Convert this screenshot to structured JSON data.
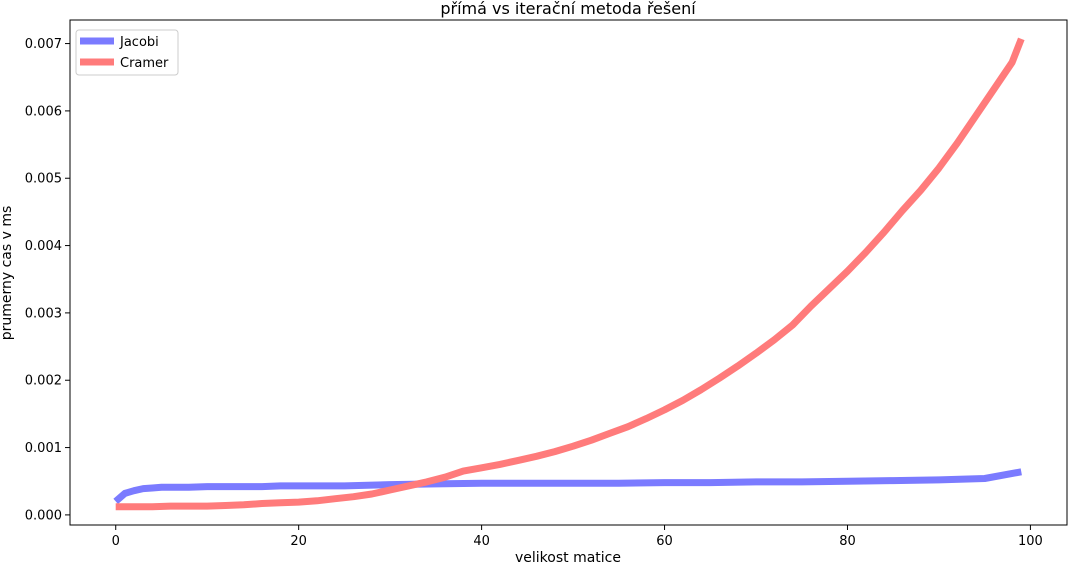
{
  "chart_data": {
    "type": "line",
    "title": "přímá vs iterační metoda řešení",
    "xlabel": "velikost matice",
    "ylabel": "prumerny cas v ms",
    "xlim": [
      -5,
      104
    ],
    "ylim": [
      -0.00015,
      0.00735
    ],
    "x_ticks": [
      0,
      20,
      40,
      60,
      80,
      100
    ],
    "y_ticks": [
      0.0,
      0.001,
      0.002,
      0.003,
      0.004,
      0.005,
      0.006,
      0.007
    ],
    "x_tick_labels": [
      "0",
      "20",
      "40",
      "60",
      "80",
      "100"
    ],
    "y_tick_labels": [
      "0.000",
      "0.001",
      "0.002",
      "0.003",
      "0.004",
      "0.005",
      "0.006",
      "0.007"
    ],
    "grid": false,
    "legend_position": "top-left",
    "series": [
      {
        "name": "Jacobi",
        "color": "#7b7bff",
        "points": [
          [
            0,
            0.0002
          ],
          [
            1,
            0.00032
          ],
          [
            2,
            0.00036
          ],
          [
            3,
            0.00039
          ],
          [
            4,
            0.0004
          ],
          [
            5,
            0.00041
          ],
          [
            6,
            0.00041
          ],
          [
            8,
            0.00041
          ],
          [
            10,
            0.00042
          ],
          [
            12,
            0.00042
          ],
          [
            14,
            0.00042
          ],
          [
            16,
            0.00042
          ],
          [
            18,
            0.00043
          ],
          [
            20,
            0.00043
          ],
          [
            25,
            0.00043
          ],
          [
            30,
            0.00045
          ],
          [
            35,
            0.00046
          ],
          [
            40,
            0.00047
          ],
          [
            45,
            0.00047
          ],
          [
            50,
            0.00047
          ],
          [
            55,
            0.00047
          ],
          [
            60,
            0.00048
          ],
          [
            65,
            0.00048
          ],
          [
            70,
            0.00049
          ],
          [
            75,
            0.00049
          ],
          [
            80,
            0.0005
          ],
          [
            85,
            0.00051
          ],
          [
            90,
            0.00052
          ],
          [
            95,
            0.00054
          ],
          [
            99,
            0.00064
          ]
        ]
      },
      {
        "name": "Cramer",
        "color": "#ff7b7b",
        "points": [
          [
            0,
            0.00012
          ],
          [
            2,
            0.00012
          ],
          [
            4,
            0.00012
          ],
          [
            6,
            0.00013
          ],
          [
            8,
            0.00013
          ],
          [
            10,
            0.00013
          ],
          [
            12,
            0.00014
          ],
          [
            14,
            0.00015
          ],
          [
            16,
            0.00017
          ],
          [
            18,
            0.00018
          ],
          [
            20,
            0.00019
          ],
          [
            22,
            0.00021
          ],
          [
            24,
            0.00024
          ],
          [
            26,
            0.00027
          ],
          [
            28,
            0.00031
          ],
          [
            30,
            0.00037
          ],
          [
            32,
            0.00043
          ],
          [
            34,
            0.00049
          ],
          [
            36,
            0.00056
          ],
          [
            38,
            0.00065
          ],
          [
            40,
            0.0007
          ],
          [
            42,
            0.00075
          ],
          [
            44,
            0.00081
          ],
          [
            46,
            0.00087
          ],
          [
            48,
            0.00094
          ],
          [
            50,
            0.00102
          ],
          [
            52,
            0.00111
          ],
          [
            54,
            0.00121
          ],
          [
            56,
            0.00131
          ],
          [
            58,
            0.00143
          ],
          [
            60,
            0.00156
          ],
          [
            62,
            0.0017
          ],
          [
            64,
            0.00186
          ],
          [
            66,
            0.00203
          ],
          [
            68,
            0.00221
          ],
          [
            70,
            0.0024
          ],
          [
            72,
            0.0026
          ],
          [
            74,
            0.00282
          ],
          [
            76,
            0.0031
          ],
          [
            78,
            0.00336
          ],
          [
            80,
            0.00362
          ],
          [
            82,
            0.0039
          ],
          [
            84,
            0.0042
          ],
          [
            86,
            0.00452
          ],
          [
            88,
            0.00482
          ],
          [
            90,
            0.00515
          ],
          [
            92,
            0.00552
          ],
          [
            94,
            0.00592
          ],
          [
            96,
            0.00632
          ],
          [
            98,
            0.00672
          ],
          [
            99,
            0.00707
          ]
        ]
      }
    ]
  }
}
